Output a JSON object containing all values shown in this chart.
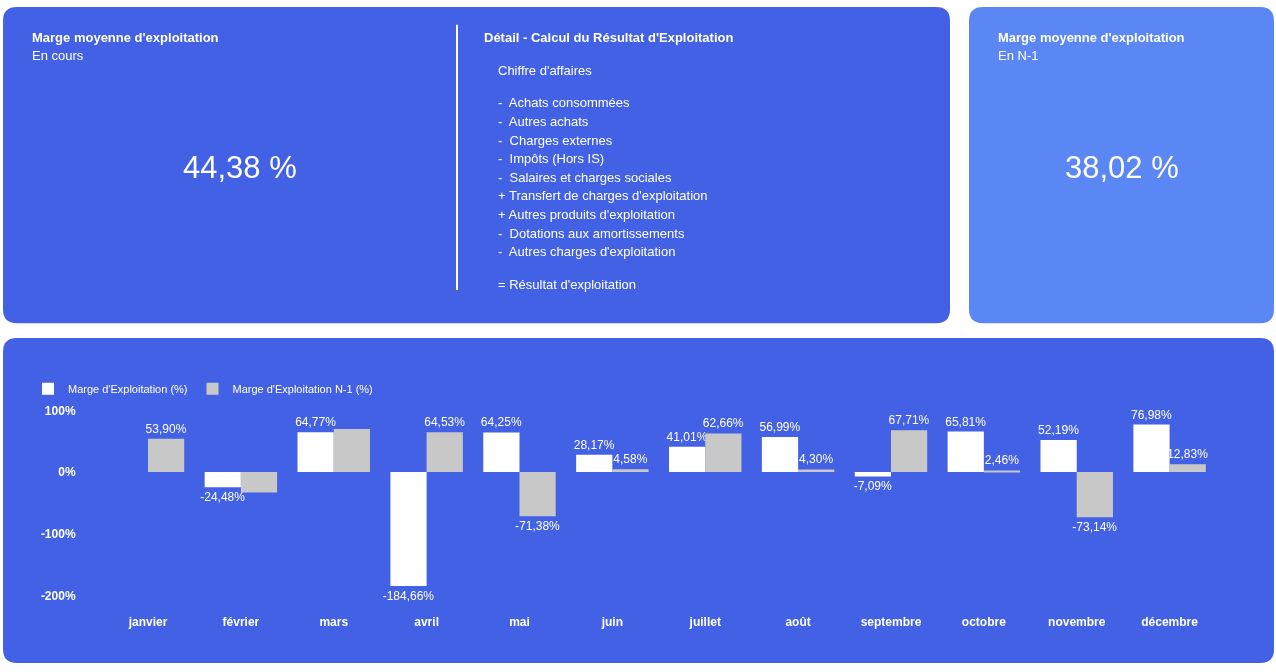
{
  "chart_data": [
    {
      "type": "other",
      "title": "Marge moyenne d'exploitation",
      "subtitle": "En cours",
      "annotations": [
        "44,38 %"
      ]
    },
    {
      "type": "other",
      "title": "Détail - Calcul du Résultat d'Exploitation",
      "annotations": [
        "Chiffre d'affaires",
        "-  Achats consommées",
        "-  Autres achats",
        "-  Charges externes",
        "-  Impôts (Hors IS)",
        "-  Salaires et charges sociales",
        "+ Transfert de charges d'exploitation",
        "+ Autres produits d'exploitation",
        "-  Dotations aux amortissements",
        "-  Autres charges d'exploitation",
        "= Résultat d'exploitation"
      ]
    },
    {
      "type": "other",
      "title": "Marge moyenne d'exploitation",
      "subtitle": "En N-1",
      "annotations": [
        "38,02 %"
      ]
    },
    {
      "type": "bar",
      "categories": [
        "janvier",
        "février",
        "mars",
        "avril",
        "mai",
        "juin",
        "juillet",
        "août",
        "septembre",
        "octobre",
        "novembre",
        "décembre"
      ],
      "series": [
        {
          "name": "Marge d'Exploitation (%)",
          "color": "#ffffff",
          "values": [
            null,
            -24.48,
            64.77,
            -184.66,
            64.25,
            28.17,
            41.01,
            56.99,
            -7.09,
            65.81,
            52.19,
            76.98
          ],
          "value_labels": [
            null,
            "-24,48%",
            "64,77%",
            "-184,66%",
            "64,25%",
            "28,17%",
            "41,01%",
            "56,99%",
            "-7,09%",
            "65,81%",
            "52,19%",
            "76,98%"
          ]
        },
        {
          "name": "Marge d'Exploitation N-1 (%)",
          "color": "#c8c8c8",
          "values": [
            53.9,
            -33,
            70,
            64.53,
            -71.38,
            4.58,
            62.66,
            4.3,
            67.71,
            2.46,
            -73.14,
            12.83
          ],
          "value_labels": [
            "53,90%",
            null,
            null,
            "64,53%",
            "-71,38%",
            "4,58%",
            "62,66%",
            "4,30%",
            "67,71%",
            "2,46%",
            "-73,14%",
            "12,83%"
          ]
        }
      ],
      "ylim": [
        -200,
        100
      ],
      "yticks": [
        {
          "value": 100,
          "label": "100%"
        },
        {
          "value": 0,
          "label": "0%"
        },
        {
          "value": -100,
          "label": "-100%"
        },
        {
          "value": -200,
          "label": "-200%"
        }
      ],
      "grid": false,
      "legend": "top left"
    }
  ]
}
